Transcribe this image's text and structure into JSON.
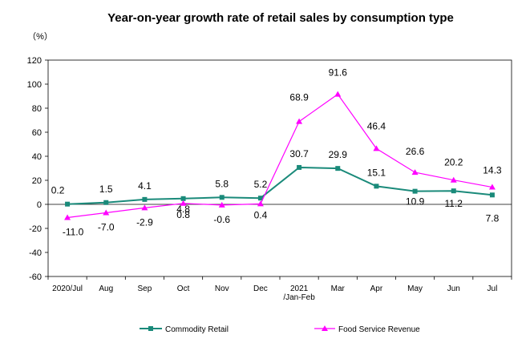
{
  "chart_data": {
    "type": "line",
    "title": "Year-on-year growth rate of retail sales by consumption type",
    "unit_label": "（%）",
    "categories": [
      "2020/Jul",
      "Aug",
      "Sep",
      "Oct",
      "Nov",
      "Dec",
      "2021\n/Jan-Feb",
      "Mar",
      "Apr",
      "May",
      "Jun",
      "Jul"
    ],
    "ylim": [
      -60,
      120
    ],
    "yticks": [
      -60,
      -40,
      -20,
      0,
      20,
      40,
      60,
      80,
      100,
      120
    ],
    "grid": false,
    "legend_position": "bottom",
    "series": [
      {
        "name": "Commodity Retail",
        "color": "#1a8a7a",
        "marker": "square",
        "values": [
          0.2,
          1.5,
          4.1,
          4.8,
          5.8,
          5.2,
          30.7,
          29.9,
          15.1,
          10.9,
          11.2,
          7.8
        ],
        "labels": [
          "0.2",
          "1.5",
          "4.1",
          "4.8",
          "5.8",
          "5.2",
          "30.7",
          "29.9",
          "15.1",
          "10.9",
          "11.2",
          "7.8"
        ]
      },
      {
        "name": "Food Service Revenue",
        "color": "#ff00ff",
        "marker": "triangle",
        "values": [
          -11.0,
          -7.0,
          -2.9,
          0.8,
          -0.6,
          0.4,
          68.9,
          91.6,
          46.4,
          26.6,
          20.2,
          14.3
        ],
        "labels": [
          "-11.0",
          "-7.0",
          "-2.9",
          "0.8",
          "-0.6",
          "0.4",
          "68.9",
          "91.6",
          "46.4",
          "26.6",
          "20.2",
          "14.3"
        ]
      }
    ]
  }
}
